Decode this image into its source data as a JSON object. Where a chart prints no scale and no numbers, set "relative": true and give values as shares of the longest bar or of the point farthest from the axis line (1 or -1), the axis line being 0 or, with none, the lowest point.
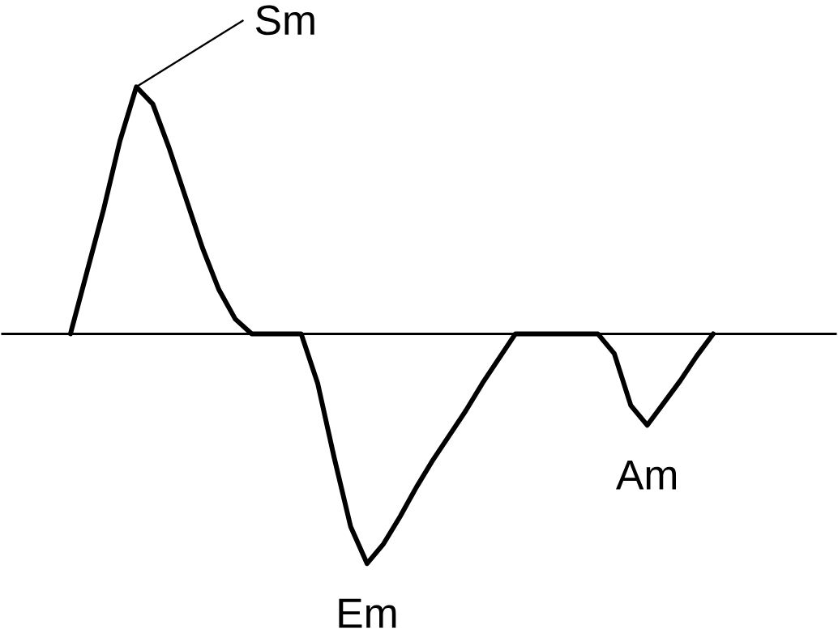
{
  "chart_data": {
    "type": "line",
    "relative": true,
    "color": "#000000",
    "marker": "none",
    "line_style": "solid",
    "categories": [
      null,
      null,
      null,
      null,
      null,
      null,
      null,
      null,
      null,
      null,
      null,
      null,
      null,
      null,
      null,
      null,
      null,
      null,
      null,
      null,
      null,
      null,
      null,
      null,
      null,
      null,
      null,
      null,
      null,
      null,
      null,
      null,
      null,
      null,
      null,
      null,
      null,
      null,
      null,
      null
    ],
    "values": [
      0,
      0.25,
      0.5,
      0.78,
      1,
      0.93,
      0.75,
      0.55,
      0.35,
      0.18,
      0.06,
      0,
      0,
      0,
      0,
      -0.2,
      -0.5,
      -0.78,
      -0.93,
      -0.85,
      -0.74,
      -0.62,
      -0.51,
      -0.41,
      -0.31,
      -0.2,
      -0.1,
      0,
      0,
      0,
      0,
      0,
      0,
      -0.08,
      -0.29,
      -0.37,
      -0.28,
      -0.19,
      -0.09,
      0
    ],
    "annotations": [
      "Sm",
      "Em",
      "Am"
    ]
  }
}
